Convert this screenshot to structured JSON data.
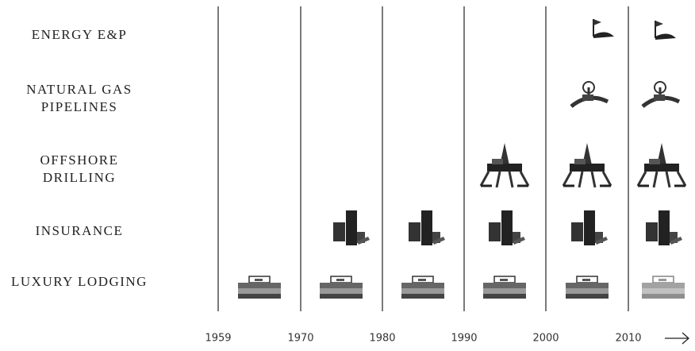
{
  "rows": [
    {
      "label_lines": [
        "ENERGY E&P"
      ]
    },
    {
      "label_lines": [
        "NATURAL GAS",
        "PIPELINES"
      ]
    },
    {
      "label_lines": [
        "OFFSHORE",
        "DRILLING"
      ]
    },
    {
      "label_lines": [
        "INSURANCE"
      ]
    },
    {
      "label_lines": [
        "LUXURY LODGING"
      ]
    }
  ],
  "years": [
    "1959",
    "1970",
    "1980",
    "1990",
    "2000",
    "2010"
  ]
}
